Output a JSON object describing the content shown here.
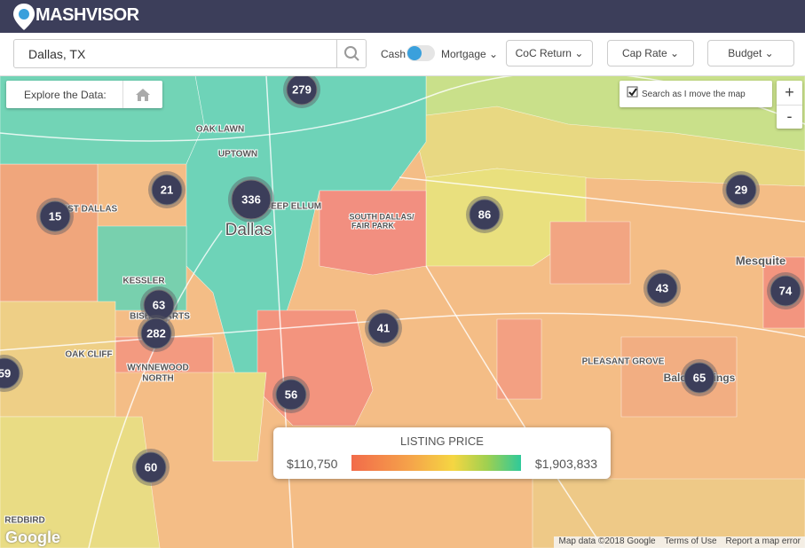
{
  "header": {
    "logo": "MASHVISOR"
  },
  "search": {
    "query": "Dallas, TX",
    "toggle_left": "Cash",
    "toggle_right": "Mortgage",
    "filters": [
      "CoC Return",
      "Cap Rate",
      "Budget"
    ]
  },
  "map": {
    "explore_label": "Explore the Data:",
    "search_as_move": "Search as I move the map",
    "zoom_in": "+",
    "zoom_out": "-",
    "place_labels": [
      "WEST DALLAS",
      "OAK LAWN",
      "UPTOWN",
      "DEEP ELLUM",
      "Dallas",
      "SOUTH DALLAS/",
      "FAIR PARK",
      "Mesquite",
      "KESSLER",
      "BISHOP ARTS",
      "OAK CLIFF",
      "WYNNEWOOD",
      "NORTH",
      "PLEASANT GROVE",
      "Balch Springs",
      "REDBIRD"
    ],
    "clusters": [
      279,
      336,
      21,
      15,
      86,
      29,
      43,
      74,
      63,
      282,
      41,
      56,
      65,
      59,
      60
    ],
    "legend": {
      "title": "LISTING PRICE",
      "min": "$110,750",
      "max": "$1,903,833"
    },
    "attribution": {
      "google": "Google",
      "map_data": "Map data ©2018 Google",
      "terms": "Terms of Use",
      "report": "Report a map error"
    }
  }
}
